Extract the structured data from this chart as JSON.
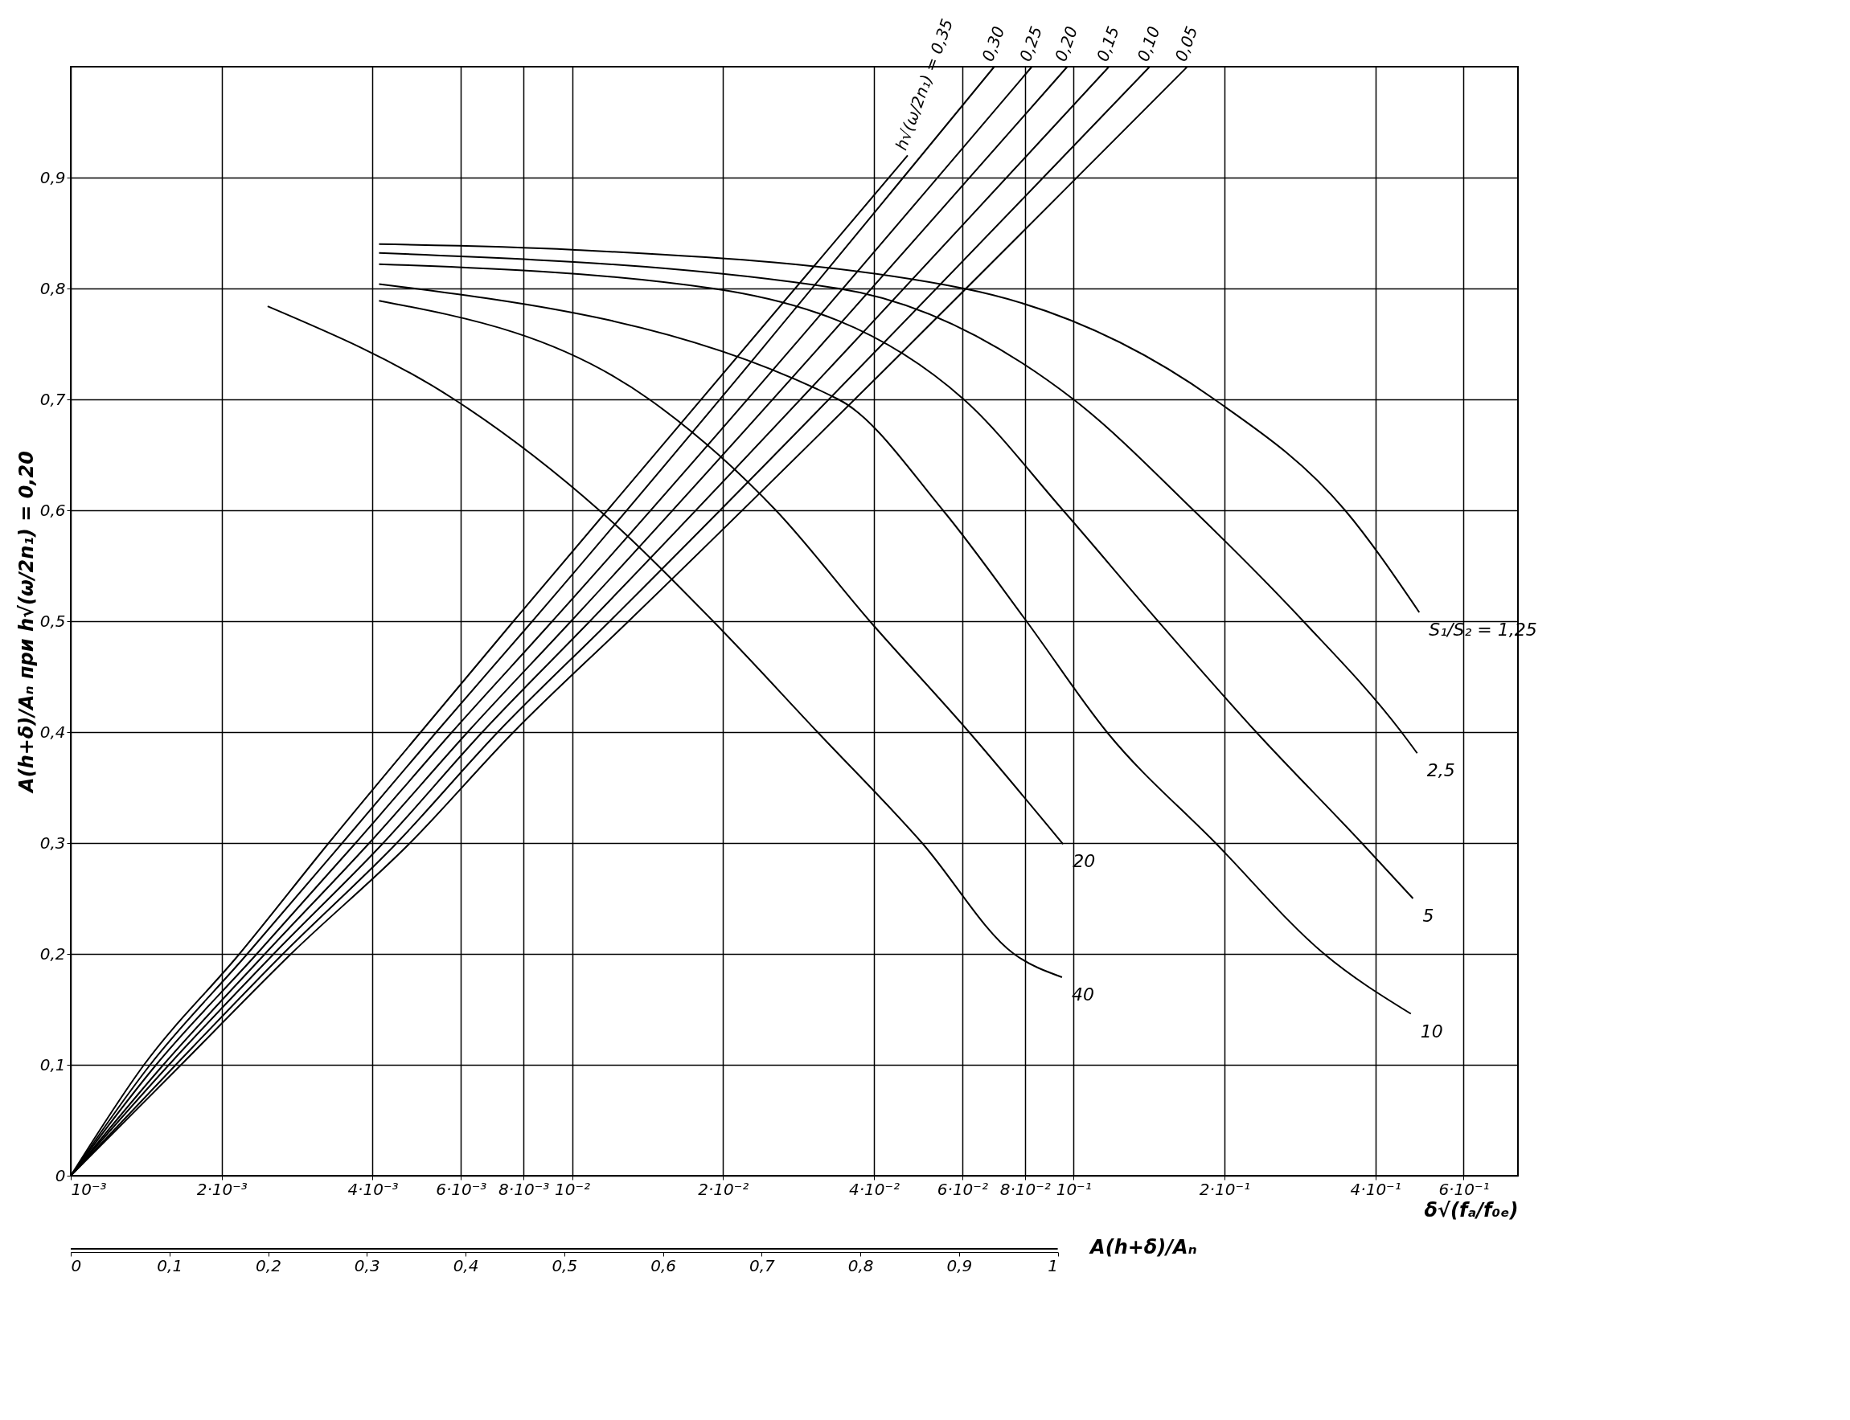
{
  "chart_data": {
    "type": "line",
    "ylabel": "A(h+δ)/Aₙ при h√(ω/2n₁) = 0,20",
    "xlabel": "δ√(fₐ/f₀ₑ)",
    "x2label": "A(h+δ)/Aₙ",
    "log": "x",
    "grid": true,
    "xlim": [
      0.001,
      0.77
    ],
    "ylim": [
      0,
      1.0
    ],
    "xticks": [
      {
        "value": 0.001,
        "label": "10⁻³"
      },
      {
        "value": 0.002,
        "label": "2·10⁻³"
      },
      {
        "value": 0.004,
        "label": "4·10⁻³"
      },
      {
        "value": 0.006,
        "label": "6·10⁻³"
      },
      {
        "value": 0.008,
        "label": "8·10⁻³"
      },
      {
        "value": 0.01,
        "label": "10⁻²"
      },
      {
        "value": 0.02,
        "label": "2·10⁻²"
      },
      {
        "value": 0.04,
        "label": "4·10⁻²"
      },
      {
        "value": 0.06,
        "label": "6·10⁻²"
      },
      {
        "value": 0.08,
        "label": "8·10⁻²"
      },
      {
        "value": 0.1,
        "label": "10⁻¹"
      },
      {
        "value": 0.2,
        "label": "2·10⁻¹"
      },
      {
        "value": 0.4,
        "label": "4·10⁻¹"
      },
      {
        "value": 0.6,
        "label": "6·10⁻¹"
      }
    ],
    "yticks": [
      {
        "value": 0,
        "label": "0"
      },
      {
        "value": 0.1,
        "label": "0,1"
      },
      {
        "value": 0.2,
        "label": "0,2"
      },
      {
        "value": 0.3,
        "label": "0,3"
      },
      {
        "value": 0.4,
        "label": "0,4"
      },
      {
        "value": 0.5,
        "label": "0,5"
      },
      {
        "value": 0.6,
        "label": "0,6"
      },
      {
        "value": 0.7,
        "label": "0,7"
      },
      {
        "value": 0.8,
        "label": "0,8"
      },
      {
        "value": 0.9,
        "label": "0,9"
      }
    ],
    "x2lim": [
      0,
      1
    ],
    "x2ticks": [
      {
        "value": 0,
        "label": "0"
      },
      {
        "value": 0.1,
        "label": "0,1"
      },
      {
        "value": 0.2,
        "label": "0,2"
      },
      {
        "value": 0.3,
        "label": "0,3"
      },
      {
        "value": 0.4,
        "label": "0,4"
      },
      {
        "value": 0.5,
        "label": "0,5"
      },
      {
        "value": 0.6,
        "label": "0,6"
      },
      {
        "value": 0.7,
        "label": "0,7"
      },
      {
        "value": 0.8,
        "label": "0,8"
      },
      {
        "value": 0.9,
        "label": "0,9"
      },
      {
        "value": 1,
        "label": "1"
      }
    ],
    "series": [
      {
        "name": "h√(ω/2n₁) = 0,35",
        "color": "#000000",
        "x": [
          0.001,
          0.0014,
          0.00217,
          0.00327,
          0.00499,
          0.00764,
          0.0467
        ],
        "values": [
          0,
          0.1,
          0.2,
          0.3,
          0.4,
          0.5,
          0.92
        ]
      },
      {
        "name": "0,30",
        "color": "#000000",
        "x": [
          0.001,
          0.00144,
          0.00225,
          0.00348,
          0.00536,
          0.00833,
          0.0695
        ],
        "values": [
          0,
          0.1,
          0.2,
          0.3,
          0.4,
          0.5,
          1.0
        ]
      },
      {
        "name": "0,25",
        "color": "#000000",
        "x": [
          0.001,
          0.00148,
          0.00235,
          0.0037,
          0.00576,
          0.00913,
          0.0826
        ],
        "values": [
          0,
          0.1,
          0.2,
          0.3,
          0.4,
          0.5,
          1.0
        ]
      },
      {
        "name": "0,20",
        "color": "#000000",
        "x": [
          0.001,
          0.00153,
          0.00244,
          0.00394,
          0.00619,
          0.00995,
          0.0972
        ],
        "values": [
          0,
          0.1,
          0.2,
          0.3,
          0.4,
          0.5,
          1.0
        ]
      },
      {
        "name": "0,15",
        "color": "#000000",
        "x": [
          0.001,
          0.00157,
          0.00254,
          0.0042,
          0.00662,
          0.01085,
          0.1177
        ],
        "values": [
          0,
          0.1,
          0.2,
          0.3,
          0.4,
          0.5,
          1.0
        ]
      },
      {
        "name": "0,10",
        "color": "#000000",
        "x": [
          0.001,
          0.00162,
          0.00265,
          0.00447,
          0.00711,
          0.01189,
          0.1419
        ],
        "values": [
          0,
          0.1,
          0.2,
          0.3,
          0.4,
          0.5,
          1.0
        ]
      },
      {
        "name": "0,05",
        "color": "#000000",
        "x": [
          0.001,
          0.00166,
          0.00275,
          0.00475,
          0.00764,
          0.01296,
          0.1687
        ],
        "values": [
          0,
          0.1,
          0.2,
          0.3,
          0.4,
          0.5,
          1.0
        ]
      },
      {
        "name": "S₁/S₂ = 1,25",
        "color": "#000000",
        "x": [
          0.00412,
          0.01,
          0.06042,
          0.1911,
          0.3481,
          0.4894
        ],
        "values": [
          0.84,
          0.835,
          0.8,
          0.7,
          0.6,
          0.508
        ]
      },
      {
        "name": "2,5",
        "color": "#000000",
        "x": [
          0.00412,
          0.03398,
          0.1,
          0.1736,
          0.2873,
          0.451,
          0.4847
        ],
        "values": [
          0.832,
          0.8,
          0.7,
          0.6,
          0.5,
          0.4,
          0.381
        ]
      },
      {
        "name": "5",
        "color": "#000000",
        "x": [
          0.00412,
          0.01911,
          0.06042,
          0.09533,
          0.1475,
          0.2315,
          0.3758,
          0.4755
        ],
        "values": [
          0.822,
          0.8,
          0.7,
          0.6,
          0.5,
          0.4,
          0.3,
          0.25
        ]
      },
      {
        "name": "10",
        "color": "#000000",
        "x": [
          0.00412,
          0.03398,
          0.05491,
          0.08058,
          0.1166,
          0.192,
          0.3162,
          0.4709
        ],
        "values": [
          0.804,
          0.7,
          0.6,
          0.5,
          0.4,
          0.3,
          0.2,
          0.146
        ]
      },
      {
        "name": "20",
        "color": "#000000",
        "x": [
          0.00412,
          0.01426,
          0.02549,
          0.03925,
          0.0619,
          0.09533
        ],
        "values": [
          0.789,
          0.7,
          0.6,
          0.5,
          0.4,
          0.299
        ]
      },
      {
        "name": "40",
        "color": "#000000",
        "x": [
          0.00247,
          0.00582,
          0.01133,
          0.01911,
          0.03087,
          0.04989,
          0.07607,
          0.09487
        ],
        "values": [
          0.784,
          0.7,
          0.6,
          0.5,
          0.4,
          0.3,
          0.2,
          0.179
        ]
      }
    ]
  }
}
